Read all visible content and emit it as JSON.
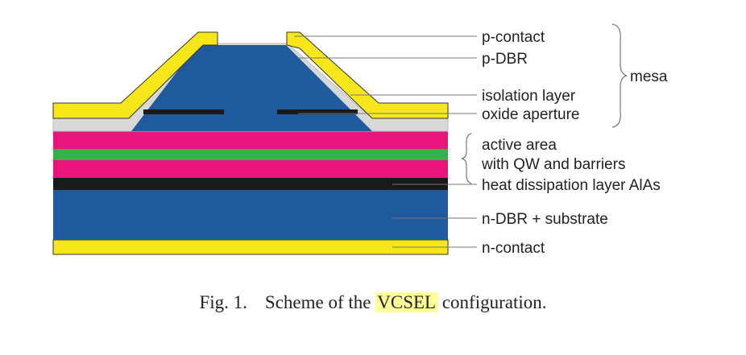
{
  "colors": {
    "gold": "#f7e71a",
    "dbr_blue": "#1f5a9e",
    "isolation_gray": "#d8d8d8",
    "magenta": "#e8157c",
    "green": "#2db54a",
    "black": "#1a1a1a",
    "highlight": "#ffff99"
  },
  "labels": {
    "p_contact": "p-contact",
    "p_dbr": "p-DBR",
    "isolation_layer": "isolation layer",
    "oxide_aperture": "oxide aperture",
    "mesa": "mesa",
    "active_area_1": "active area",
    "active_area_2": "with QW and barriers",
    "heat_dissipation": "heat dissipation layer AlAs",
    "n_dbr": "n-DBR + substrate",
    "n_contact": "n-contact"
  },
  "caption": {
    "fig": "Fig. 1.",
    "pre": "Scheme of the ",
    "highlight": "VCSEL",
    "post": " configuration."
  }
}
